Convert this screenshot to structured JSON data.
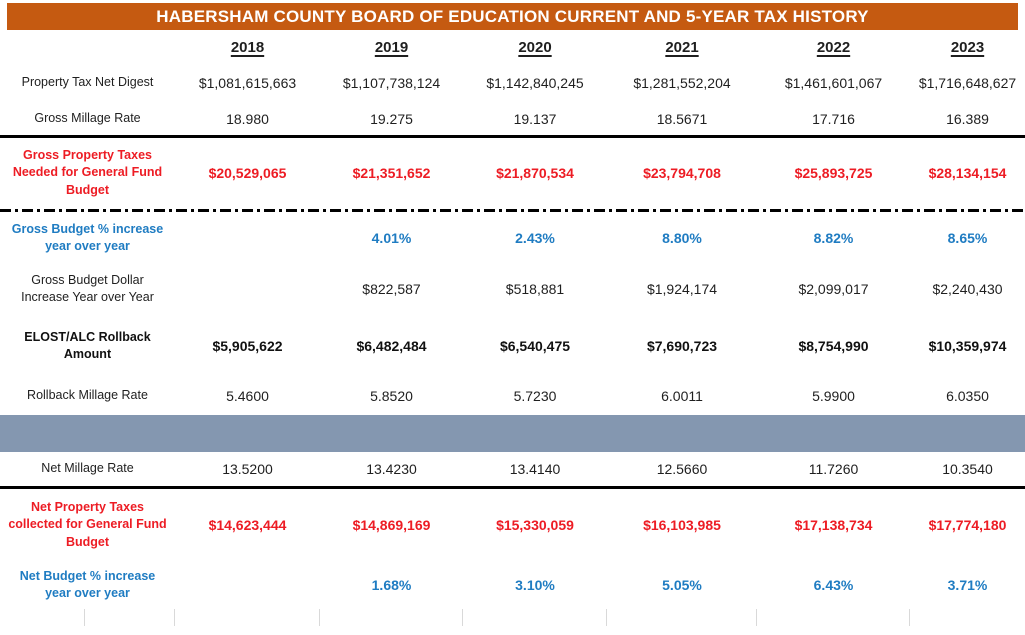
{
  "title": "HABERSHAM COUNTY BOARD OF EDUCATION CURRENT AND 5-YEAR TAX HISTORY",
  "colors": {
    "header_bg": "#C55A11",
    "header_text": "#FFFFFF",
    "accent_red": "#ED1C24",
    "accent_blue": "#1F7CC2",
    "band_bg": "#8497B0"
  },
  "years": [
    "2018",
    "2019",
    "2020",
    "2021",
    "2022",
    "2023"
  ],
  "rows": [
    {
      "label": "Property Tax Net Digest",
      "values": [
        "$1,081,615,663",
        "$1,107,738,124",
        "$1,142,840,245",
        "$1,281,552,204",
        "$1,461,601,067",
        "$1,716,648,627"
      ]
    },
    {
      "label": "Gross Millage Rate",
      "values": [
        "18.980",
        "19.275",
        "19.137",
        "18.5671",
        "17.716",
        "16.389"
      ]
    },
    {
      "label": "Gross Property Taxes Needed for General Fund Budget",
      "values": [
        "$20,529,065",
        "$21,351,652",
        "$21,870,534",
        "$23,794,708",
        "$25,893,725",
        "$28,134,154"
      ]
    },
    {
      "label": "Gross Budget % increase year over year",
      "values": [
        "",
        "4.01%",
        "2.43%",
        "8.80%",
        "8.82%",
        "8.65%"
      ]
    },
    {
      "label": "Gross Budget Dollar Increase Year over Year",
      "values": [
        "",
        "$822,587",
        "$518,881",
        "$1,924,174",
        "$2,099,017",
        "$2,240,430"
      ]
    },
    {
      "label": "ELOST/ALC  Rollback Amount",
      "values": [
        "$5,905,622",
        "$6,482,484",
        "$6,540,475",
        "$7,690,723",
        "$8,754,990",
        "$10,359,974"
      ]
    },
    {
      "label": "Rollback Millage Rate",
      "values": [
        "5.4600",
        "5.8520",
        "5.7230",
        "6.0011",
        "5.9900",
        "6.0350"
      ]
    },
    {
      "label": "Net Millage Rate",
      "values": [
        "13.5200",
        "13.4230",
        "13.4140",
        "12.5660",
        "11.7260",
        "10.3540"
      ]
    },
    {
      "label": "Net Property Taxes collected for General Fund Budget",
      "values": [
        "$14,623,444",
        "$14,869,169",
        "$15,330,059",
        "$16,103,985",
        "$17,138,734",
        "$17,774,180"
      ]
    },
    {
      "label": "Net Budget % increase year over year",
      "values": [
        "",
        "1.68%",
        "3.10%",
        "5.05%",
        "6.43%",
        "3.71%"
      ]
    }
  ]
}
